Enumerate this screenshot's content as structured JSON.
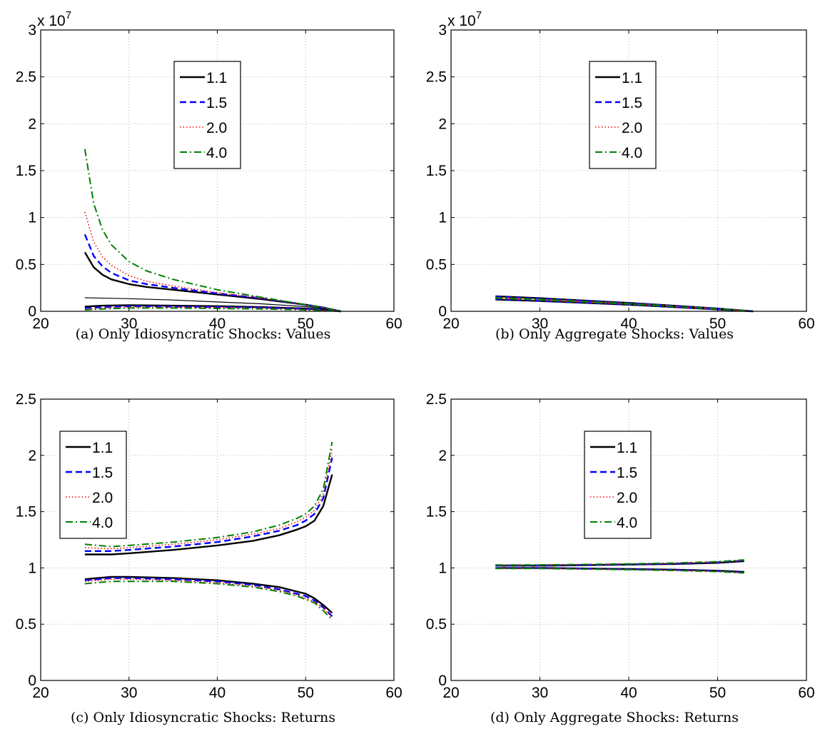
{
  "colors": {
    "s11": "#000000",
    "s15": "#0000ff",
    "s20": "#ff0000",
    "s40": "#008000",
    "grid": "#b4b4b4"
  },
  "legend_labels": [
    "1.1",
    "1.5",
    "2.0",
    "4.0"
  ],
  "chart_data": [
    {
      "type": "line",
      "caption": "(a) Only Idiosyncratic Shocks: Values",
      "exponent_label": "x 10",
      "exponent": "7",
      "xlim": [
        20,
        60
      ],
      "ylim": [
        0,
        3
      ],
      "xticks": [
        "20",
        "30",
        "40",
        "50",
        "60"
      ],
      "yticks": [
        "0",
        "0.5",
        "1",
        "1.5",
        "2",
        "2.5",
        "3"
      ],
      "grid": true,
      "legend_position": "upper-middle",
      "series": [
        {
          "name": "1.1",
          "bands": [
            {
              "x": [
                25,
                26,
                27,
                28,
                30,
                32,
                35,
                40,
                45,
                50,
                52,
                54
              ],
              "y": [
                0.63,
                0.47,
                0.39,
                0.34,
                0.29,
                0.26,
                0.23,
                0.18,
                0.13,
                0.07,
                0.04,
                0.0
              ]
            },
            {
              "x": [
                25,
                30,
                35,
                40,
                45,
                50,
                52,
                54
              ],
              "y": [
                0.145,
                0.135,
                0.12,
                0.1,
                0.08,
                0.05,
                0.03,
                0.0
              ]
            },
            {
              "x": [
                25,
                27,
                30,
                35,
                40,
                45,
                50,
                52,
                54
              ],
              "y": [
                0.05,
                0.06,
                0.065,
                0.06,
                0.055,
                0.045,
                0.03,
                0.015,
                0.0
              ]
            }
          ]
        },
        {
          "name": "1.5",
          "bands": [
            {
              "x": [
                25,
                26,
                27,
                28,
                30,
                32,
                35,
                40,
                45,
                50,
                52,
                54
              ],
              "y": [
                0.82,
                0.59,
                0.48,
                0.41,
                0.33,
                0.29,
                0.25,
                0.19,
                0.14,
                0.07,
                0.04,
                0.0
              ]
            },
            {
              "x": [
                25,
                27,
                30,
                35,
                40,
                45,
                50,
                52,
                54
              ],
              "y": [
                0.035,
                0.045,
                0.055,
                0.05,
                0.045,
                0.04,
                0.025,
                0.012,
                0.0
              ]
            }
          ]
        },
        {
          "name": "2.0",
          "bands": [
            {
              "x": [
                25,
                26,
                27,
                28,
                30,
                32,
                35,
                40,
                45,
                50,
                52,
                54
              ],
              "y": [
                1.06,
                0.74,
                0.58,
                0.49,
                0.38,
                0.32,
                0.27,
                0.2,
                0.14,
                0.07,
                0.04,
                0.0
              ]
            },
            {
              "x": [
                25,
                27,
                30,
                35,
                40,
                45,
                50,
                52,
                54
              ],
              "y": [
                0.025,
                0.035,
                0.045,
                0.045,
                0.04,
                0.035,
                0.02,
                0.01,
                0.0
              ]
            }
          ]
        },
        {
          "name": "4.0",
          "bands": [
            {
              "x": [
                25,
                26,
                27,
                28,
                30,
                32,
                35,
                40,
                45,
                50,
                52,
                54
              ],
              "y": [
                1.73,
                1.15,
                0.87,
                0.71,
                0.53,
                0.43,
                0.34,
                0.23,
                0.15,
                0.07,
                0.04,
                0.0
              ]
            },
            {
              "x": [
                25,
                27,
                30,
                35,
                40,
                45,
                50,
                52,
                54
              ],
              "y": [
                0.015,
                0.025,
                0.035,
                0.035,
                0.03,
                0.025,
                0.015,
                0.008,
                0.0
              ]
            }
          ]
        }
      ]
    },
    {
      "type": "line",
      "caption": "(b) Only Aggregate Shocks: Values",
      "exponent_label": "x 10",
      "exponent": "7",
      "xlim": [
        20,
        60
      ],
      "ylim": [
        0,
        3
      ],
      "xticks": [
        "20",
        "30",
        "40",
        "50",
        "60"
      ],
      "yticks": [
        "0",
        "0.5",
        "1",
        "1.5",
        "2",
        "2.5",
        "3"
      ],
      "grid": true,
      "legend_position": "upper-middle",
      "series": [
        {
          "name": "1.1",
          "bands": [
            {
              "x": [
                25,
                30,
                35,
                40,
                45,
                50,
                54
              ],
              "y": [
                0.16,
                0.14,
                0.115,
                0.09,
                0.06,
                0.03,
                0.0
              ]
            },
            {
              "x": [
                25,
                30,
                35,
                40,
                45,
                50,
                54
              ],
              "y": [
                0.125,
                0.11,
                0.09,
                0.07,
                0.045,
                0.02,
                0.0
              ]
            }
          ]
        },
        {
          "name": "1.5",
          "bands": [
            {
              "x": [
                25,
                30,
                35,
                40,
                45,
                50,
                54
              ],
              "y": [
                0.155,
                0.135,
                0.112,
                0.088,
                0.058,
                0.028,
                0.0
              ]
            },
            {
              "x": [
                25,
                30,
                35,
                40,
                45,
                50,
                54
              ],
              "y": [
                0.13,
                0.113,
                0.093,
                0.072,
                0.047,
                0.021,
                0.0
              ]
            }
          ]
        },
        {
          "name": "2.0",
          "bands": [
            {
              "x": [
                25,
                30,
                35,
                40,
                45,
                50,
                54
              ],
              "y": [
                0.15,
                0.13,
                0.108,
                0.085,
                0.056,
                0.027,
                0.0
              ]
            },
            {
              "x": [
                25,
                30,
                35,
                40,
                45,
                50,
                54
              ],
              "y": [
                0.135,
                0.117,
                0.096,
                0.075,
                0.049,
                0.022,
                0.0
              ]
            }
          ]
        },
        {
          "name": "4.0",
          "bands": [
            {
              "x": [
                25,
                30,
                35,
                40,
                45,
                50,
                54
              ],
              "y": [
                0.145,
                0.127,
                0.105,
                0.082,
                0.054,
                0.026,
                0.0
              ]
            },
            {
              "x": [
                25,
                30,
                35,
                40,
                45,
                50,
                54
              ],
              "y": [
                0.14,
                0.122,
                0.1,
                0.078,
                0.051,
                0.024,
                0.0
              ]
            }
          ]
        }
      ]
    },
    {
      "type": "line",
      "caption": "(c) Only Idiosyncratic Shocks: Returns",
      "xlim": [
        20,
        60
      ],
      "ylim": [
        0,
        2.5
      ],
      "xticks": [
        "20",
        "30",
        "40",
        "50",
        "60"
      ],
      "yticks": [
        "0",
        "0.5",
        "1",
        "1.5",
        "2",
        "2.5"
      ],
      "grid": true,
      "legend_position": "upper-left",
      "series": [
        {
          "name": "1.1",
          "bands": [
            {
              "x": [
                25,
                28,
                30,
                35,
                40,
                44,
                47,
                49,
                50,
                51,
                52,
                53
              ],
              "y": [
                1.12,
                1.12,
                1.13,
                1.16,
                1.2,
                1.24,
                1.29,
                1.34,
                1.37,
                1.42,
                1.55,
                1.83
              ]
            },
            {
              "x": [
                25,
                28,
                30,
                35,
                40,
                44,
                47,
                49,
                50,
                51,
                52,
                53
              ],
              "y": [
                0.9,
                0.92,
                0.92,
                0.91,
                0.89,
                0.86,
                0.83,
                0.79,
                0.77,
                0.73,
                0.67,
                0.6
              ]
            }
          ]
        },
        {
          "name": "1.5",
          "bands": [
            {
              "x": [
                25,
                28,
                30,
                35,
                40,
                44,
                47,
                49,
                50,
                51,
                52,
                53
              ],
              "y": [
                1.15,
                1.15,
                1.16,
                1.19,
                1.23,
                1.28,
                1.33,
                1.38,
                1.42,
                1.48,
                1.62,
                1.98
              ]
            },
            {
              "x": [
                25,
                28,
                30,
                35,
                40,
                44,
                47,
                49,
                50,
                51,
                52,
                53
              ],
              "y": [
                0.89,
                0.91,
                0.91,
                0.9,
                0.88,
                0.85,
                0.81,
                0.77,
                0.75,
                0.71,
                0.65,
                0.57
              ]
            }
          ]
        },
        {
          "name": "2.0",
          "bands": [
            {
              "x": [
                25,
                28,
                30,
                35,
                40,
                44,
                47,
                49,
                50,
                51,
                52,
                53
              ],
              "y": [
                1.18,
                1.17,
                1.18,
                1.21,
                1.25,
                1.3,
                1.35,
                1.41,
                1.45,
                1.51,
                1.66,
                2.05
              ]
            },
            {
              "x": [
                25,
                28,
                30,
                35,
                40,
                44,
                47,
                49,
                50,
                51,
                52,
                53
              ],
              "y": [
                0.88,
                0.9,
                0.9,
                0.89,
                0.87,
                0.84,
                0.8,
                0.76,
                0.73,
                0.7,
                0.64,
                0.56
              ]
            }
          ]
        },
        {
          "name": "4.0",
          "bands": [
            {
              "x": [
                25,
                28,
                30,
                35,
                40,
                44,
                47,
                49,
                50,
                51,
                52,
                53
              ],
              "y": [
                1.21,
                1.19,
                1.2,
                1.23,
                1.27,
                1.32,
                1.38,
                1.44,
                1.48,
                1.55,
                1.7,
                2.12
              ]
            },
            {
              "x": [
                25,
                28,
                30,
                35,
                40,
                44,
                47,
                49,
                50,
                51,
                52,
                53
              ],
              "y": [
                0.86,
                0.88,
                0.88,
                0.88,
                0.86,
                0.83,
                0.79,
                0.75,
                0.72,
                0.69,
                0.62,
                0.54
              ]
            }
          ]
        }
      ]
    },
    {
      "type": "line",
      "caption": "(d) Only Aggregate Shocks: Returns",
      "xlim": [
        20,
        60
      ],
      "ylim": [
        0,
        2.5
      ],
      "xticks": [
        "20",
        "30",
        "40",
        "50",
        "60"
      ],
      "yticks": [
        "0",
        "0.5",
        "1",
        "1.5",
        "2",
        "2.5"
      ],
      "grid": true,
      "legend_position": "upper-middle",
      "series": [
        {
          "name": "1.1",
          "bands": [
            {
              "x": [
                25,
                30,
                35,
                40,
                45,
                50,
                53
              ],
              "y": [
                1.02,
                1.02,
                1.025,
                1.03,
                1.035,
                1.045,
                1.06
              ]
            },
            {
              "x": [
                25,
                30,
                35,
                40,
                45,
                50,
                53
              ],
              "y": [
                1.0,
                1.0,
                0.995,
                0.99,
                0.985,
                0.975,
                0.965
              ]
            }
          ]
        },
        {
          "name": "1.5",
          "bands": [
            {
              "x": [
                25,
                30,
                35,
                40,
                45,
                50,
                53
              ],
              "y": [
                1.022,
                1.023,
                1.027,
                1.032,
                1.038,
                1.05,
                1.065
              ]
            },
            {
              "x": [
                25,
                30,
                35,
                40,
                45,
                50,
                53
              ],
              "y": [
                0.998,
                0.998,
                0.993,
                0.988,
                0.982,
                0.972,
                0.96
              ]
            }
          ]
        },
        {
          "name": "2.0",
          "bands": [
            {
              "x": [
                25,
                30,
                35,
                40,
                45,
                50,
                53
              ],
              "y": [
                1.024,
                1.025,
                1.029,
                1.034,
                1.04,
                1.052,
                1.068
              ]
            },
            {
              "x": [
                25,
                30,
                35,
                40,
                45,
                50,
                53
              ],
              "y": [
                0.996,
                0.996,
                0.991,
                0.986,
                0.98,
                0.97,
                0.958
              ]
            }
          ]
        },
        {
          "name": "4.0",
          "bands": [
            {
              "x": [
                25,
                30,
                35,
                40,
                45,
                50,
                53
              ],
              "y": [
                1.026,
                1.027,
                1.031,
                1.036,
                1.043,
                1.056,
                1.072
              ]
            },
            {
              "x": [
                25,
                30,
                35,
                40,
                45,
                50,
                53
              ],
              "y": [
                0.994,
                0.994,
                0.989,
                0.984,
                0.977,
                0.967,
                0.955
              ]
            }
          ]
        }
      ]
    }
  ]
}
